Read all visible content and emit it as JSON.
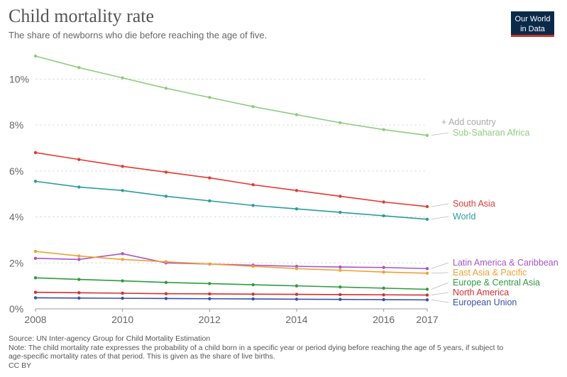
{
  "header": {
    "title": "Child mortality rate",
    "subtitle": "The share of newborns who die before reaching the age of five.",
    "logo_line1": "Our World",
    "logo_line2": "in Data"
  },
  "controls": {
    "add_country": "+ Add country"
  },
  "footer": {
    "source": "Source: UN Inter-agency Group for Child Mortality Estimation",
    "note_line1": "Note: The child mortality rate expresses the probability of a child born in a specific year or period dying before reaching the age of 5 years, if subject to",
    "note_line2": "age-specific mortality rates of that period. This is given as the share of live births.",
    "license": "CC BY"
  },
  "chart_data": {
    "type": "line",
    "title": "Child mortality rate",
    "subtitle": "The share of newborns who die before reaching the age of five.",
    "xlabel": "",
    "ylabel": "",
    "x": [
      2008,
      2009,
      2010,
      2011,
      2012,
      2013,
      2014,
      2015,
      2016,
      2017
    ],
    "xticks": [
      "2008",
      "2010",
      "2012",
      "2014",
      "2016",
      "2017"
    ],
    "yticks": [
      "0%",
      "2%",
      "4%",
      "6%",
      "8%",
      "10%"
    ],
    "ylim": [
      0,
      11
    ],
    "grid": true,
    "series": [
      {
        "name": "Sub-Saharan Africa",
        "color": "#8fcc7e",
        "values": [
          11.0,
          10.5,
          10.05,
          9.6,
          9.2,
          8.8,
          8.45,
          8.1,
          7.8,
          7.55
        ]
      },
      {
        "name": "South Asia",
        "color": "#e53935",
        "values": [
          6.8,
          6.5,
          6.2,
          5.95,
          5.7,
          5.4,
          5.15,
          4.9,
          4.65,
          4.45
        ]
      },
      {
        "name": "World",
        "color": "#2a9d9d",
        "values": [
          5.55,
          5.3,
          5.15,
          4.9,
          4.7,
          4.5,
          4.35,
          4.2,
          4.05,
          3.9
        ]
      },
      {
        "name": "Latin America & Caribbean",
        "color": "#a855c8",
        "values": [
          2.2,
          2.15,
          2.4,
          2.0,
          1.95,
          1.9,
          1.85,
          1.82,
          1.8,
          1.75
        ]
      },
      {
        "name": "East Asia & Pacific",
        "color": "#f0a030",
        "values": [
          2.5,
          2.3,
          2.15,
          2.05,
          1.95,
          1.85,
          1.75,
          1.68,
          1.6,
          1.55
        ]
      },
      {
        "name": "Europe & Central Asia",
        "color": "#2e9b3e",
        "values": [
          1.35,
          1.28,
          1.22,
          1.15,
          1.1,
          1.05,
          1.0,
          0.95,
          0.9,
          0.85
        ]
      },
      {
        "name": "North America",
        "color": "#d32f2f",
        "values": [
          0.72,
          0.7,
          0.68,
          0.66,
          0.65,
          0.64,
          0.63,
          0.62,
          0.61,
          0.6
        ]
      },
      {
        "name": "European Union",
        "color": "#3a4fa8",
        "values": [
          0.48,
          0.47,
          0.46,
          0.45,
          0.44,
          0.43,
          0.42,
          0.41,
          0.4,
          0.39
        ]
      }
    ],
    "legend": "right, inline labels at line ends"
  }
}
